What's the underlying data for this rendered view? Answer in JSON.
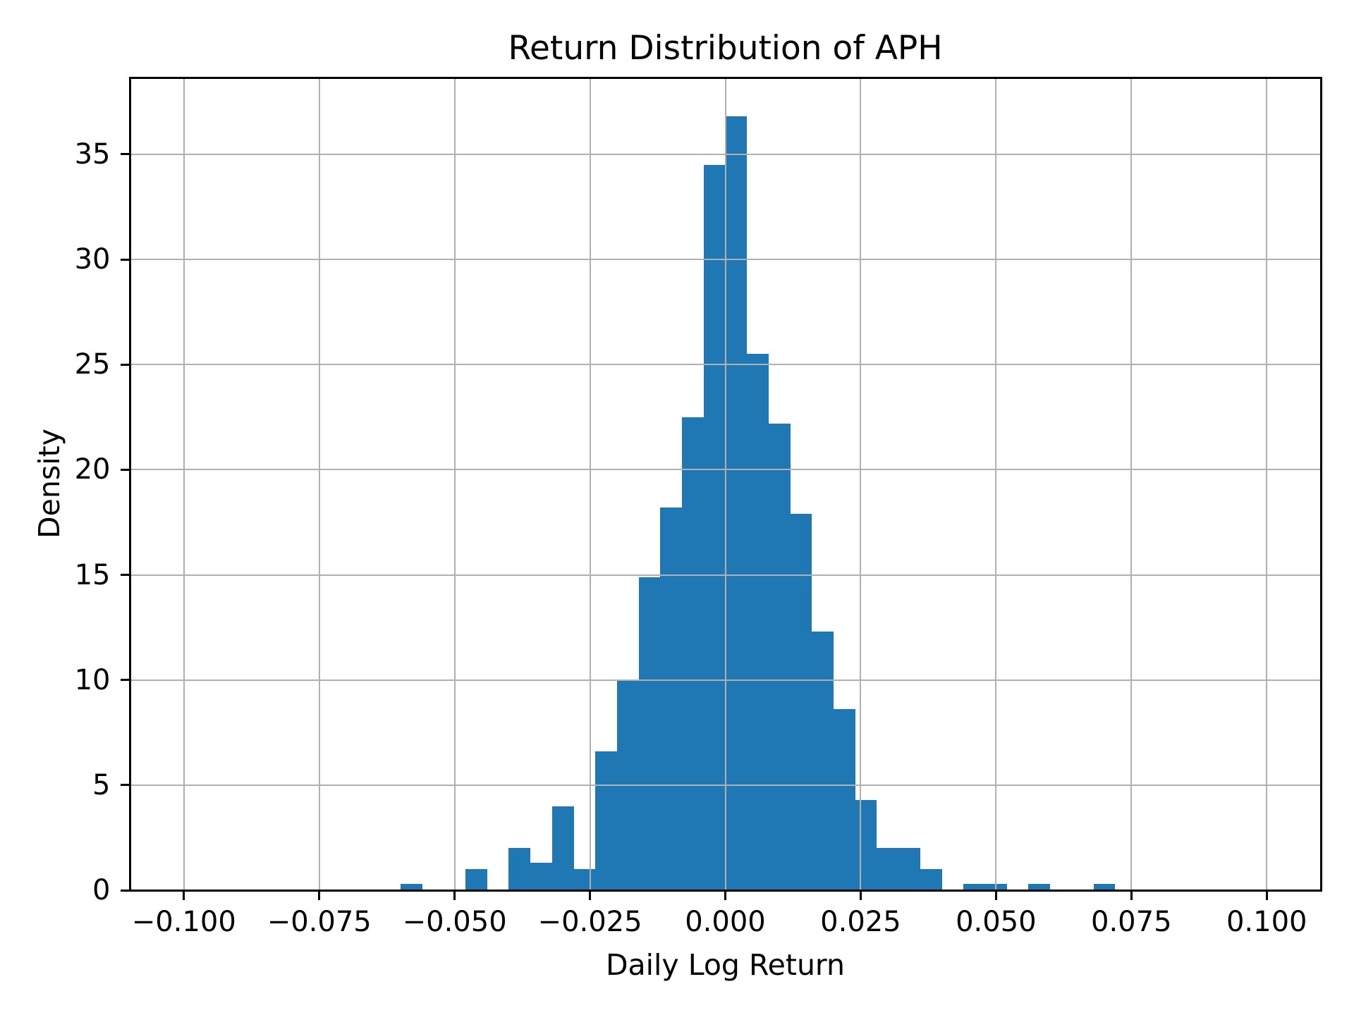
{
  "chart_data": {
    "type": "bar",
    "subtype": "histogram",
    "title": "Return Distribution of APH",
    "xlabel": "Daily Log Return",
    "ylabel": "Density",
    "xlim": [
      -0.11,
      0.11
    ],
    "ylim": [
      0,
      38.65
    ],
    "grid": true,
    "legend": false,
    "bin_width": 0.004,
    "x_ticks": [
      {
        "value": -0.1,
        "label": "−0.100"
      },
      {
        "value": -0.075,
        "label": "−0.075"
      },
      {
        "value": -0.05,
        "label": "−0.050"
      },
      {
        "value": -0.025,
        "label": "−0.025"
      },
      {
        "value": 0.0,
        "label": "0.000"
      },
      {
        "value": 0.025,
        "label": "0.025"
      },
      {
        "value": 0.05,
        "label": "0.050"
      },
      {
        "value": 0.075,
        "label": "0.075"
      },
      {
        "value": 0.1,
        "label": "0.100"
      }
    ],
    "y_ticks": [
      {
        "value": 0,
        "label": "0"
      },
      {
        "value": 5,
        "label": "5"
      },
      {
        "value": 10,
        "label": "10"
      },
      {
        "value": 15,
        "label": "15"
      },
      {
        "value": 20,
        "label": "20"
      },
      {
        "value": 25,
        "label": "25"
      },
      {
        "value": 30,
        "label": "30"
      },
      {
        "value": 35,
        "label": "35"
      }
    ],
    "bars": [
      {
        "x_left": -0.06,
        "density": 0.3
      },
      {
        "x_left": -0.048,
        "density": 1.0
      },
      {
        "x_left": -0.04,
        "density": 2.0
      },
      {
        "x_left": -0.036,
        "density": 1.3
      },
      {
        "x_left": -0.032,
        "density": 4.0
      },
      {
        "x_left": -0.028,
        "density": 1.0
      },
      {
        "x_left": -0.024,
        "density": 6.6
      },
      {
        "x_left": -0.02,
        "density": 10.0
      },
      {
        "x_left": -0.016,
        "density": 14.9
      },
      {
        "x_left": -0.012,
        "density": 18.2
      },
      {
        "x_left": -0.008,
        "density": 22.5
      },
      {
        "x_left": -0.004,
        "density": 34.5
      },
      {
        "x_left": 0.0,
        "density": 36.8
      },
      {
        "x_left": 0.004,
        "density": 25.5
      },
      {
        "x_left": 0.008,
        "density": 22.2
      },
      {
        "x_left": 0.012,
        "density": 17.9
      },
      {
        "x_left": 0.016,
        "density": 12.3
      },
      {
        "x_left": 0.02,
        "density": 8.6
      },
      {
        "x_left": 0.024,
        "density": 4.3
      },
      {
        "x_left": 0.028,
        "density": 2.0
      },
      {
        "x_left": 0.032,
        "density": 2.0
      },
      {
        "x_left": 0.036,
        "density": 1.0
      },
      {
        "x_left": 0.044,
        "density": 0.3
      },
      {
        "x_left": 0.048,
        "density": 0.3
      },
      {
        "x_left": 0.056,
        "density": 0.3
      },
      {
        "x_left": 0.068,
        "density": 0.3
      }
    ],
    "colors": {
      "bar": "#1f77b4",
      "grid": "#b0b0b0",
      "spine": "#000000",
      "text": "#000000",
      "background": "#ffffff"
    }
  }
}
